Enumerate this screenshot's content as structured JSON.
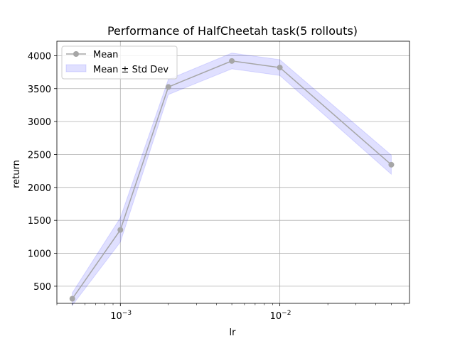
{
  "chart_data": {
    "type": "line",
    "title": "Performance of HalfCheetah task(5 rollouts)",
    "xlabel": "lr",
    "ylabel": "return",
    "xscale": "log",
    "xlim": [
      0.0004,
      0.065
    ],
    "ylim": [
      240,
      4220
    ],
    "grid": true,
    "legend_placement": "top-left",
    "x_ticks": [
      {
        "value": 0.001,
        "base": "10",
        "exp": "−3"
      },
      {
        "value": 0.01,
        "base": "10",
        "exp": "−2"
      }
    ],
    "y_ticks": [
      500,
      1000,
      1500,
      2000,
      2500,
      3000,
      3500,
      4000
    ],
    "x": [
      0.0005,
      0.001,
      0.002,
      0.005,
      0.01,
      0.05
    ],
    "series": [
      {
        "name": "Mean",
        "values": [
          310,
          1355,
          3525,
          3920,
          3820,
          2345
        ],
        "color": "#a6a6a6"
      },
      {
        "name": "Mean ± Std Dev",
        "type": "band",
        "lower": [
          210,
          1170,
          3410,
          3800,
          3700,
          2200
        ],
        "upper": [
          400,
          1540,
          3640,
          4040,
          3940,
          2490
        ],
        "color": "#0000ff",
        "opacity": 0.12
      }
    ]
  }
}
